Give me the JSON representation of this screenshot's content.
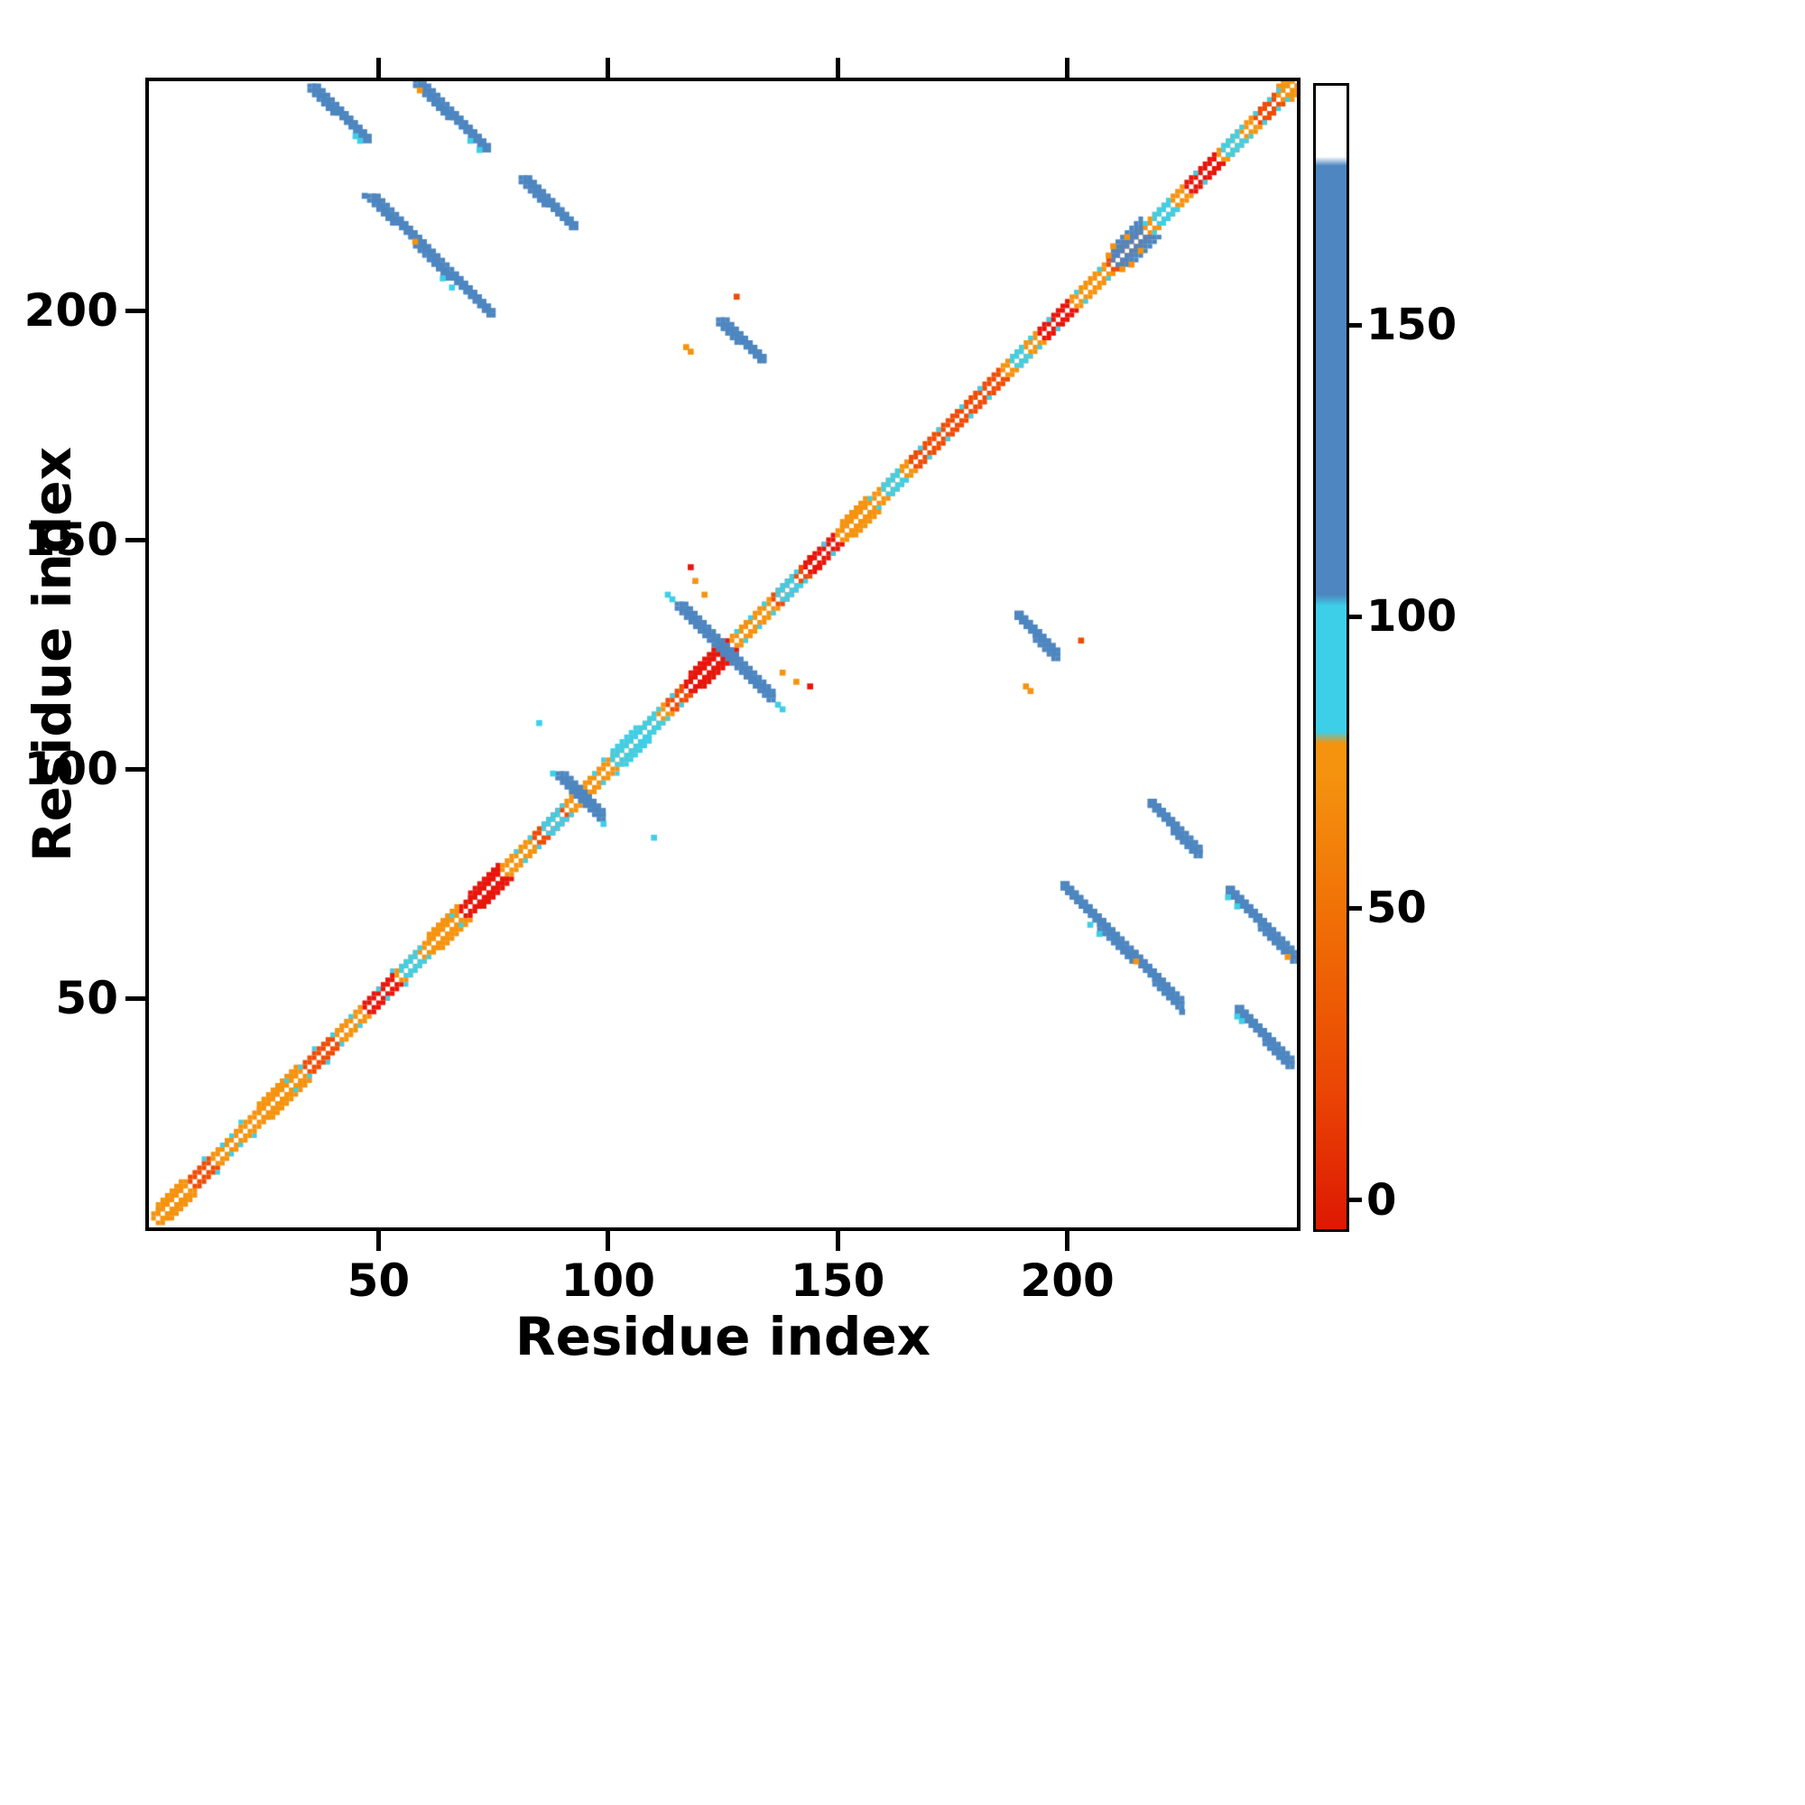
{
  "title": "",
  "axes": {
    "x_label": "Residue index",
    "y_label": "Residue index",
    "x_ticks": [
      50,
      100,
      150,
      200
    ],
    "y_ticks": [
      50,
      100,
      150,
      200
    ],
    "range": [
      0,
      250
    ]
  },
  "colorbar": {
    "ticks": [
      0,
      50,
      100,
      150
    ],
    "value_range": [
      -5,
      191
    ],
    "stops": [
      [
        0.0,
        "#dd1803"
      ],
      [
        0.12,
        "#ea4504"
      ],
      [
        0.26,
        "#f06c05"
      ],
      [
        0.4,
        "#f5930f"
      ],
      [
        0.425,
        "#f5930f"
      ],
      [
        0.435,
        "#3ecfe8"
      ],
      [
        0.545,
        "#3ecfe8"
      ],
      [
        0.555,
        "#4d86c0"
      ],
      [
        0.93,
        "#4d86c0"
      ],
      [
        0.938,
        "#ffffff"
      ],
      [
        1.0,
        "#ffffff"
      ]
    ]
  },
  "palette": {
    "red": "#e8150a",
    "orangered": "#f04b05",
    "orange": "#f5930f",
    "cyan": "#3ecfe8",
    "blue": "#4d86c0"
  },
  "chart_data": {
    "type": "heatmap",
    "title": "",
    "description": "Symmetric protein residue-residue contact map; near-diagonal contacts in red/orange, medium-range in cyan, long-range strand pairings in blue",
    "xlabel": "Residue index",
    "ylabel": "Residue index",
    "xlim": [
      0,
      250
    ],
    "ylim": [
      0,
      250
    ],
    "symmetric": true,
    "colorbar_ticks": [
      0,
      50,
      100,
      150
    ],
    "diagonal": {
      "band_offsets": [
        1,
        2
      ],
      "default_color": "orangered",
      "segments": [
        [
          1,
          9,
          "orange"
        ],
        [
          14,
          34,
          "orange"
        ],
        [
          41,
          47,
          "orange"
        ],
        [
          47,
          54,
          "red"
        ],
        [
          54,
          68,
          "orange"
        ],
        [
          68,
          77,
          "red"
        ],
        [
          77,
          84,
          "orange"
        ],
        [
          91,
          113,
          "orange"
        ],
        [
          117,
          127,
          "red"
        ],
        [
          127,
          136,
          "orange"
        ],
        [
          143,
          150,
          "red"
        ],
        [
          150,
          166,
          "orange"
        ],
        [
          186,
          194,
          "orange"
        ],
        [
          194,
          201,
          "red"
        ],
        [
          201,
          209,
          "orange"
        ],
        [
          217,
          226,
          "orange"
        ],
        [
          226,
          233,
          "red"
        ],
        [
          233,
          241,
          "orange"
        ],
        [
          247,
          251,
          "orange"
        ]
      ]
    },
    "diagonal_blobs": [
      [
        2,
        7,
        3,
        "orange"
      ],
      [
        24,
        32,
        3,
        "orange"
      ],
      [
        55,
        58,
        2,
        "cyan"
      ],
      [
        61,
        67,
        3,
        "orange"
      ],
      [
        70,
        76,
        3,
        "red"
      ],
      [
        86,
        89,
        2,
        "cyan"
      ],
      [
        101,
        106,
        3,
        "cyan"
      ],
      [
        107,
        110,
        2,
        "cyan"
      ],
      [
        118,
        125,
        3,
        "red"
      ],
      [
        137,
        140,
        2,
        "cyan"
      ],
      [
        151,
        156,
        3,
        "orange"
      ],
      [
        160,
        163,
        2,
        "cyan"
      ],
      [
        188,
        190,
        2,
        "cyan"
      ],
      [
        210,
        216,
        4,
        "blue"
      ],
      [
        219,
        222,
        2,
        "cyan"
      ],
      [
        234,
        237,
        2,
        "cyan"
      ],
      [
        246,
        250,
        3,
        "orange"
      ]
    ],
    "strands": [
      [
        35,
        248,
        47,
        237,
        2,
        "blue"
      ],
      [
        58,
        249,
        73,
        235,
        2,
        "blue"
      ],
      [
        81,
        228,
        92,
        218,
        2,
        "blue"
      ],
      [
        48,
        224,
        59,
        214,
        2,
        "blue"
      ],
      [
        58,
        214,
        74,
        199,
        2,
        "blue"
      ],
      [
        124,
        197,
        133,
        189,
        2,
        "blue"
      ],
      [
        115,
        135,
        125,
        125,
        2,
        "blue"
      ],
      [
        89,
        98,
        95,
        92,
        2,
        "blue"
      ]
    ],
    "dots": [
      [
        59,
        248,
        "orange"
      ],
      [
        58,
        215,
        "orange"
      ],
      [
        117,
        192,
        "orange"
      ],
      [
        118,
        191,
        "orange"
      ],
      [
        128,
        203,
        "orangered"
      ],
      [
        118,
        144,
        "red"
      ],
      [
        121,
        138,
        "orange"
      ],
      [
        119,
        141,
        "orange"
      ],
      [
        85,
        110,
        "cyan"
      ],
      [
        47,
        225,
        "blue"
      ],
      [
        45,
        238,
        "cyan"
      ],
      [
        46,
        237,
        "cyan"
      ],
      [
        70,
        237,
        "cyan"
      ],
      [
        72,
        235,
        "cyan"
      ],
      [
        64,
        207,
        "cyan"
      ],
      [
        66,
        205,
        "cyan"
      ],
      [
        113,
        138,
        "cyan"
      ],
      [
        114,
        137,
        "cyan"
      ],
      [
        88,
        99,
        "cyan"
      ],
      [
        209,
        212,
        "orange"
      ],
      [
        210,
        214,
        "orange"
      ],
      [
        213,
        216,
        "orange"
      ],
      [
        144,
        146,
        "red"
      ]
    ],
    "specks": [
      [
        12,
        15
      ],
      [
        16,
        18
      ],
      [
        18,
        20
      ],
      [
        20,
        23
      ],
      [
        30,
        32
      ],
      [
        33,
        35
      ],
      [
        36,
        39
      ],
      [
        40,
        42
      ],
      [
        44,
        46
      ],
      [
        50,
        52
      ],
      [
        53,
        56
      ],
      [
        59,
        61
      ],
      [
        66,
        68
      ],
      [
        80,
        82
      ],
      [
        83,
        85
      ],
      [
        90,
        92
      ],
      [
        97,
        99
      ],
      [
        99,
        102
      ],
      [
        103,
        105
      ],
      [
        106,
        108
      ],
      [
        109,
        111
      ],
      [
        111,
        113
      ],
      [
        114,
        116
      ],
      [
        128,
        130
      ],
      [
        131,
        133
      ],
      [
        134,
        136
      ],
      [
        141,
        143
      ],
      [
        147,
        149
      ],
      [
        157,
        159
      ],
      [
        163,
        165
      ],
      [
        168,
        170
      ],
      [
        172,
        174
      ],
      [
        177,
        179
      ],
      [
        181,
        183
      ],
      [
        192,
        194
      ],
      [
        196,
        198
      ],
      [
        202,
        204
      ],
      [
        207,
        209
      ],
      [
        217,
        219
      ],
      [
        222,
        224
      ],
      [
        228,
        230
      ],
      [
        238,
        240
      ],
      [
        241,
        243
      ],
      [
        244,
        246
      ],
      [
        246,
        248
      ]
    ]
  }
}
